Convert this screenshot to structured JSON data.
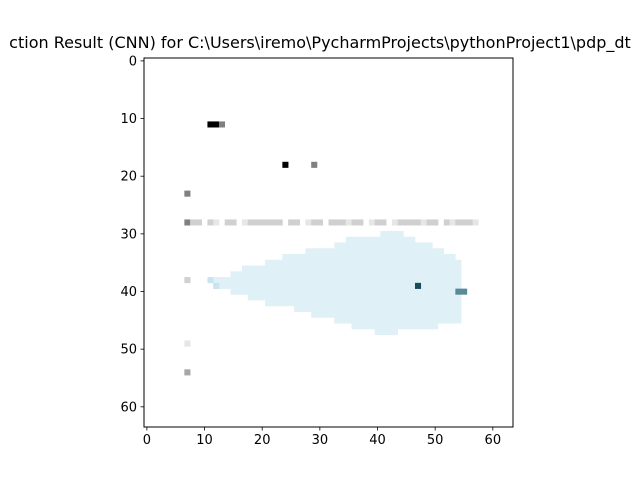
{
  "chart_data": {
    "type": "heatmap",
    "title": "ction Result (CNN) for C:\\Users\\iremo\\PycharmProjects\\pythonProject1\\pdp_dt",
    "xlabel": "",
    "ylabel": "",
    "grid_size": [
      64,
      64
    ],
    "xlim": [
      -0.5,
      63.5
    ],
    "ylim": [
      63.5,
      -0.5
    ],
    "x_ticks": [
      0,
      10,
      20,
      30,
      40,
      50,
      60
    ],
    "y_ticks": [
      0,
      10,
      20,
      30,
      40,
      50,
      60
    ],
    "grid": false,
    "colors": {
      "background": "#ffffff",
      "region": "#dff0f7",
      "dark": "#000000",
      "gray": "#808080",
      "mid_gray": "#a6a6a6",
      "light_gray": "#d0d0d0",
      "very_light": "#e6e6e6",
      "teal_dark": "#1a4d5c",
      "teal_mid": "#5a8a98",
      "teal_light": "#c8e4ee"
    },
    "region_runs": [
      {
        "row": 30,
        "start": 41,
        "end": 44
      },
      {
        "row": 31,
        "start": 35,
        "end": 46
      },
      {
        "row": 32,
        "start": 33,
        "end": 49
      },
      {
        "row": 33,
        "start": 28,
        "end": 51
      },
      {
        "row": 34,
        "start": 24,
        "end": 53
      },
      {
        "row": 35,
        "start": 21,
        "end": 54
      },
      {
        "row": 36,
        "start": 17,
        "end": 54
      },
      {
        "row": 37,
        "start": 15,
        "end": 54
      },
      {
        "row": 38,
        "start": 12,
        "end": 54
      },
      {
        "row": 39,
        "start": 12,
        "end": 54
      },
      {
        "row": 40,
        "start": 15,
        "end": 54
      },
      {
        "row": 41,
        "start": 18,
        "end": 54
      },
      {
        "row": 42,
        "start": 21,
        "end": 54
      },
      {
        "row": 43,
        "start": 26,
        "end": 54
      },
      {
        "row": 44,
        "start": 29,
        "end": 54
      },
      {
        "row": 45,
        "start": 33,
        "end": 54
      },
      {
        "row": 46,
        "start": 36,
        "end": 50
      },
      {
        "row": 47,
        "start": 40,
        "end": 43
      }
    ],
    "cells": [
      {
        "x": 11,
        "y": 11,
        "c": "dark"
      },
      {
        "x": 12,
        "y": 11,
        "c": "dark"
      },
      {
        "x": 13,
        "y": 11,
        "c": "gray"
      },
      {
        "x": 24,
        "y": 18,
        "c": "dark"
      },
      {
        "x": 29,
        "y": 18,
        "c": "gray"
      },
      {
        "x": 7,
        "y": 23,
        "c": "gray"
      },
      {
        "x": 7,
        "y": 28,
        "c": "gray"
      },
      {
        "x": 8,
        "y": 28,
        "c": "light_gray"
      },
      {
        "x": 9,
        "y": 28,
        "c": "light_gray"
      },
      {
        "x": 11,
        "y": 28,
        "c": "light_gray"
      },
      {
        "x": 12,
        "y": 28,
        "c": "very_light"
      },
      {
        "x": 14,
        "y": 28,
        "c": "light_gray"
      },
      {
        "x": 15,
        "y": 28,
        "c": "light_gray"
      },
      {
        "x": 17,
        "y": 28,
        "c": "very_light"
      },
      {
        "x": 18,
        "y": 28,
        "c": "light_gray"
      },
      {
        "x": 19,
        "y": 28,
        "c": "light_gray"
      },
      {
        "x": 20,
        "y": 28,
        "c": "light_gray"
      },
      {
        "x": 21,
        "y": 28,
        "c": "light_gray"
      },
      {
        "x": 22,
        "y": 28,
        "c": "light_gray"
      },
      {
        "x": 23,
        "y": 28,
        "c": "light_gray"
      },
      {
        "x": 25,
        "y": 28,
        "c": "light_gray"
      },
      {
        "x": 26,
        "y": 28,
        "c": "light_gray"
      },
      {
        "x": 28,
        "y": 28,
        "c": "very_light"
      },
      {
        "x": 29,
        "y": 28,
        "c": "light_gray"
      },
      {
        "x": 30,
        "y": 28,
        "c": "light_gray"
      },
      {
        "x": 32,
        "y": 28,
        "c": "light_gray"
      },
      {
        "x": 33,
        "y": 28,
        "c": "light_gray"
      },
      {
        "x": 34,
        "y": 28,
        "c": "light_gray"
      },
      {
        "x": 35,
        "y": 28,
        "c": "very_light"
      },
      {
        "x": 36,
        "y": 28,
        "c": "light_gray"
      },
      {
        "x": 37,
        "y": 28,
        "c": "light_gray"
      },
      {
        "x": 39,
        "y": 28,
        "c": "very_light"
      },
      {
        "x": 40,
        "y": 28,
        "c": "light_gray"
      },
      {
        "x": 41,
        "y": 28,
        "c": "light_gray"
      },
      {
        "x": 43,
        "y": 28,
        "c": "very_light"
      },
      {
        "x": 44,
        "y": 28,
        "c": "light_gray"
      },
      {
        "x": 45,
        "y": 28,
        "c": "light_gray"
      },
      {
        "x": 46,
        "y": 28,
        "c": "light_gray"
      },
      {
        "x": 47,
        "y": 28,
        "c": "light_gray"
      },
      {
        "x": 48,
        "y": 28,
        "c": "very_light"
      },
      {
        "x": 49,
        "y": 28,
        "c": "light_gray"
      },
      {
        "x": 50,
        "y": 28,
        "c": "light_gray"
      },
      {
        "x": 52,
        "y": 28,
        "c": "light_gray"
      },
      {
        "x": 53,
        "y": 28,
        "c": "very_light"
      },
      {
        "x": 54,
        "y": 28,
        "c": "light_gray"
      },
      {
        "x": 55,
        "y": 28,
        "c": "light_gray"
      },
      {
        "x": 56,
        "y": 28,
        "c": "light_gray"
      },
      {
        "x": 57,
        "y": 28,
        "c": "very_light"
      },
      {
        "x": 7,
        "y": 38,
        "c": "light_gray"
      },
      {
        "x": 11,
        "y": 38,
        "c": "teal_light"
      },
      {
        "x": 12,
        "y": 39,
        "c": "teal_light"
      },
      {
        "x": 47,
        "y": 39,
        "c": "teal_dark"
      },
      {
        "x": 54,
        "y": 40,
        "c": "teal_mid"
      },
      {
        "x": 55,
        "y": 40,
        "c": "teal_mid"
      },
      {
        "x": 7,
        "y": 49,
        "c": "very_light"
      },
      {
        "x": 7,
        "y": 54,
        "c": "mid_gray"
      }
    ]
  }
}
